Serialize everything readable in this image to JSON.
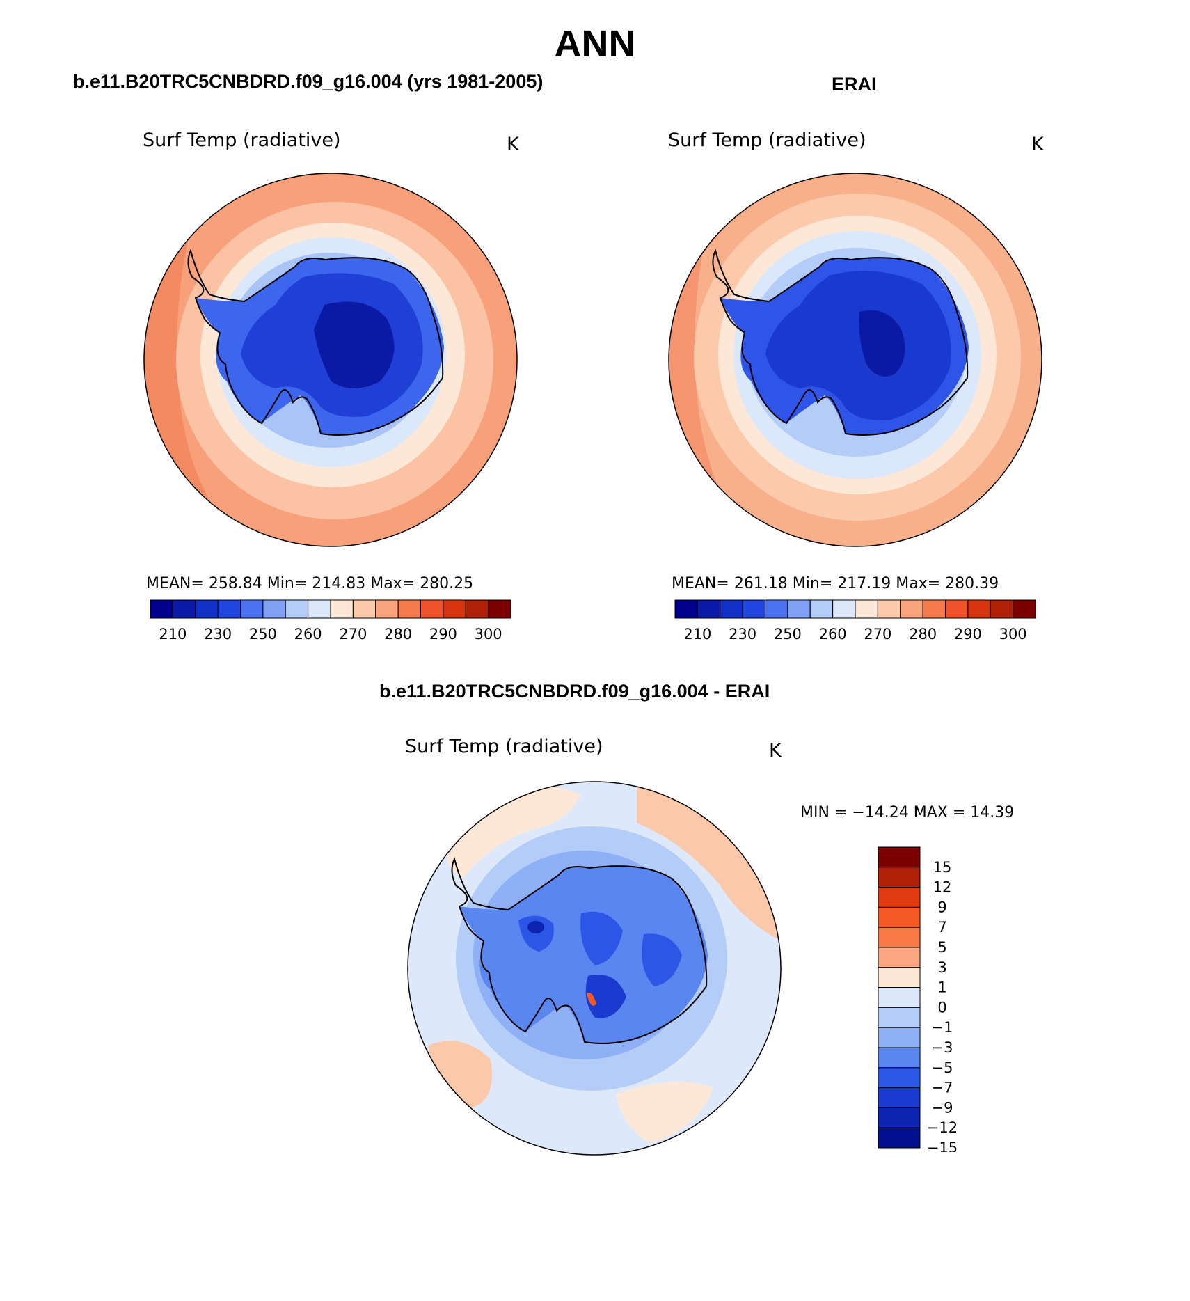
{
  "figure": {
    "title": "ANN"
  },
  "panels": [
    {
      "header": "b.e11.B20TRC5CNBDRD.f09_g16.004 (yrs 1981-2005)",
      "variable": "Surf Temp (radiative)",
      "units": "K",
      "stats": "MEAN=  258.84   Min=  214.83   Max=  280.25",
      "colorbar": {
        "colors": [
          "#00008c",
          "#0a1aa8",
          "#1030c8",
          "#2045e0",
          "#4a72f0",
          "#7fa0f5",
          "#b3ccf8",
          "#dde9fb",
          "#fde8d8",
          "#fcc9aa",
          "#f9a47c",
          "#f57a4e",
          "#f0502a",
          "#d8340f",
          "#b02008",
          "#7d0000"
        ],
        "labels": [
          "210",
          "230",
          "250",
          "260",
          "270",
          "280",
          "290",
          "300"
        ]
      }
    },
    {
      "header": "ERAI",
      "variable": "Surf Temp (radiative)",
      "units": "K",
      "stats": "MEAN=  261.18   Min=  217.19   Max=  280.39",
      "colorbar": {
        "colors": [
          "#00008c",
          "#0a1aa8",
          "#1030c8",
          "#2045e0",
          "#4a72f0",
          "#7fa0f5",
          "#b3ccf8",
          "#dde9fb",
          "#fde8d8",
          "#fcc9aa",
          "#f9a47c",
          "#f57a4e",
          "#f0502a",
          "#d8340f",
          "#b02008",
          "#7d0000"
        ],
        "labels": [
          "210",
          "230",
          "250",
          "260",
          "270",
          "280",
          "290",
          "300"
        ]
      }
    },
    {
      "header": "b.e11.B20TRC5CNBDRD.f09_g16.004 - ERAI",
      "variable": "Surf Temp (radiative)",
      "units": "K",
      "stats": "MIN = −14.24  MAX =   14.39",
      "colorbar": {
        "colors": [
          "#7d0000",
          "#b02008",
          "#e03a10",
          "#f55a25",
          "#f97a45",
          "#fba882",
          "#fde8d8",
          "#dde9fb",
          "#b3ccf8",
          "#8fb0f6",
          "#5a86f0",
          "#2c56e6",
          "#1a3ad0",
          "#0c24b0",
          "#00108f"
        ],
        "labels": [
          "15",
          "12",
          "9",
          "7",
          "5",
          "3",
          "1",
          "0",
          "−1",
          "−3",
          "−5",
          "−7",
          "−9",
          "−12",
          "−15"
        ]
      }
    }
  ],
  "colors": {
    "ocean_warm": "#f9a47c",
    "ice_cold": "#1030c8",
    "coast": "#000000"
  }
}
